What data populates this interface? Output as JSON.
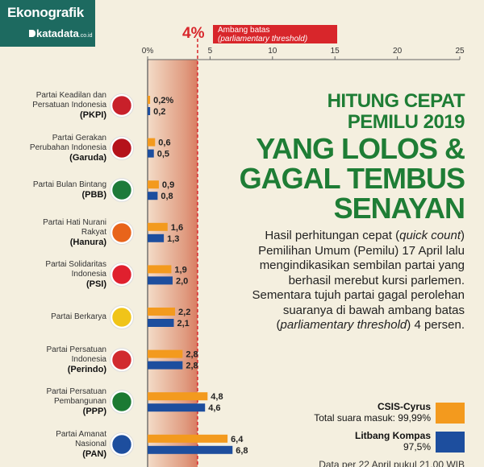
{
  "brand": {
    "name": "Ekonografik",
    "logo_text": "katadata",
    "logo_suffix": ".co.id"
  },
  "threshold": {
    "percent_label": "4%",
    "label": "Ambang batas",
    "label_italic": "(parliamentary threshold)",
    "value": 4
  },
  "headline": {
    "line1": "HITUNG CEPAT",
    "line2": "PEMILU 2019",
    "line3": "YANG LOLOS &",
    "line4": "GAGAL TEMBUS",
    "line5": "SENAYAN"
  },
  "body": {
    "p1": "Hasil perhitungan cepat (",
    "p1_it": "quick count",
    "p2": ") Pemilihan Umum (Pemilu) 17 April lalu mengindikasikan sembilan partai yang berhasil merebut kursi parlemen. Sementara tujuh partai gagal perolehan suaranya di bawah ambang batas (",
    "p2_it": "parliamentary threshold",
    "p3": ") 4 persen."
  },
  "legend": [
    {
      "name": "CSIS-Cyrus",
      "detail": "Total suara masuk: 99,99%",
      "color": "#f39a1e"
    },
    {
      "name": "Litbang Kompas",
      "detail": "97,5%",
      "color": "#1d4e9e"
    }
  ],
  "footnote": "Data per 22 April pukul 21.00 WIB",
  "chart_data": {
    "type": "bar",
    "orientation": "horizontal",
    "x_ticks": [
      "0%",
      "5",
      "10",
      "15",
      "20",
      "25"
    ],
    "xlim": [
      0,
      25
    ],
    "categories": [
      {
        "line1": "Partai Keadilan dan",
        "line2": "Persatuan Indonesia",
        "abbr": "(PKPI)",
        "logo_color": "#c8202a"
      },
      {
        "line1": "Partai Gerakan",
        "line2": "Perubahan Indonesia",
        "abbr": "(Garuda)",
        "logo_color": "#b5121b"
      },
      {
        "line1": "Partai Bulan Bintang",
        "line2": "",
        "abbr": "(PBB)",
        "logo_color": "#1d7a3a"
      },
      {
        "line1": "Partai Hati Nurani",
        "line2": "Rakyat",
        "abbr": "(Hanura)",
        "logo_color": "#e8641b"
      },
      {
        "line1": "Partai Solidaritas",
        "line2": "Indonesia",
        "abbr": "(PSI)",
        "logo_color": "#e0202e"
      },
      {
        "line1": "Partai Berkarya",
        "line2": "",
        "abbr": "",
        "logo_color": "#f0c419"
      },
      {
        "line1": "Partai Persatuan",
        "line2": "Indonesia",
        "abbr": "(Perindo)",
        "logo_color": "#d12a2f"
      },
      {
        "line1": "Partai Persatuan",
        "line2": "Pembangunan",
        "abbr": "(PPP)",
        "logo_color": "#1b7a33"
      },
      {
        "line1": "Partai Amanat",
        "line2": "Nasional",
        "abbr": "(PAN)",
        "logo_color": "#1d4e9e"
      }
    ],
    "series": [
      {
        "name": "CSIS-Cyrus",
        "values": [
          0.2,
          0.6,
          0.9,
          1.6,
          1.9,
          2.2,
          2.8,
          4.8,
          6.4
        ],
        "labels": [
          "0,2%",
          "0,6",
          "0,9",
          "1,6",
          "1,9",
          "2,2",
          "2,8",
          "4,8",
          "6,4"
        ]
      },
      {
        "name": "Litbang Kompas",
        "values": [
          0.2,
          0.5,
          0.8,
          1.3,
          2.0,
          2.1,
          2.8,
          4.6,
          6.8
        ],
        "labels": [
          "0,2",
          "0,5",
          "0,8",
          "1,3",
          "2,0",
          "2,1",
          "2,8",
          "4,6",
          "6,8"
        ]
      }
    ]
  }
}
